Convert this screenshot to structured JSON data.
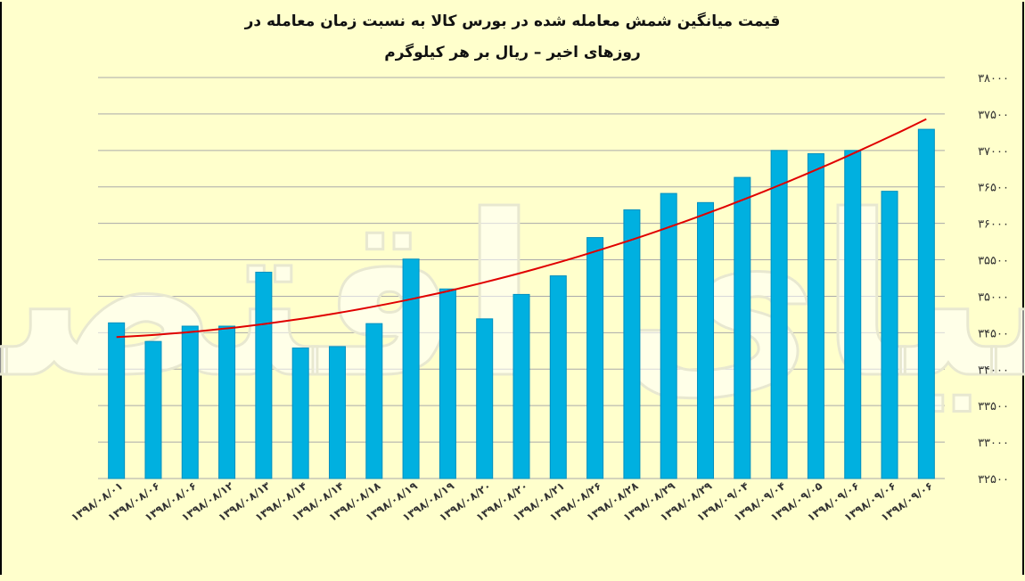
{
  "chart_data": {
    "type": "bar",
    "title": "قیمت میانگین شمش معامله شده در بورس کالا به نسبت زمان معامله در روزهای اخیر – ریال بر هر کیلوگرم",
    "title_lines": [
      "قیمت میانگین شمش معامله شده در بورس کالا به نسبت زمان معامله در",
      "روزهای اخیر – ریال بر هر کیلوگرم"
    ],
    "xlabel": "",
    "ylabel": "",
    "ylim": [
      32500,
      38000
    ],
    "ytick_labels": [
      "۳۸۰۰۰",
      "۳۷۵۰۰",
      "۳۷۰۰۰",
      "۳۶۵۰۰",
      "۳۶۰۰۰",
      "۳۵۵۰۰",
      "۳۵۰۰۰",
      "۳۴۵۰۰",
      "۳۴۰۰۰",
      "۳۳۵۰۰",
      "۳۳۰۰۰",
      "۳۲۵۰۰"
    ],
    "ytick_values": [
      38000,
      37500,
      37000,
      36500,
      36000,
      35500,
      35000,
      34500,
      34000,
      33500,
      33000,
      32500
    ],
    "categories": [
      "۱۳۹۸/۰۸/۰۱",
      "۱۳۹۸/۰۸/۰۶",
      "۱۳۹۸/۰۸/۰۶",
      "۱۳۹۸/۰۸/۱۲",
      "۱۳۹۸/۰۸/۱۳",
      "۱۳۹۸/۰۸/۱۴",
      "۱۳۹۸/۰۸/۱۴",
      "۱۳۹۸/۰۸/۱۸",
      "۱۳۹۸/۰۸/۱۹",
      "۱۳۹۸/۰۸/۱۹",
      "۱۳۹۸/۰۸/۲۰",
      "۱۳۹۸/۰۸/۲۰",
      "۱۳۹۸/۰۸/۲۱",
      "۱۳۹۸/۰۸/۲۶",
      "۱۳۹۸/۰۸/۲۸",
      "۱۳۹۸/۰۸/۲۹",
      "۱۳۹۸/۰۸/۲۹",
      "۱۳۹۸/۰۹/۰۴",
      "۱۳۹۸/۰۹/۰۴",
      "۱۳۹۸/۰۹/۰۵",
      "۱۳۹۸/۰۹/۰۶",
      "۱۳۹۸/۰۹/۰۶",
      "۱۳۹۸/۰۹/۰۶"
    ],
    "values": [
      34635,
      34380,
      34590,
      34590,
      35330,
      34290,
      34310,
      34625,
      35510,
      35100,
      34690,
      35025,
      35280,
      35805,
      36185,
      36410,
      36285,
      36630,
      37000,
      36955,
      37000,
      36440,
      37290
    ],
    "trendline": {
      "type": "polynomial",
      "start": 34440,
      "end": 37430,
      "color": "#e00000"
    },
    "grid": "horizontal",
    "legend": "none",
    "colors": {
      "bar": "#00b0e0",
      "bar_edge": "#0090c0",
      "grid": "#aaaaaa",
      "background": "#ffffcc"
    }
  },
  "watermark": {
    "text": "دنیای اقتصاد"
  }
}
